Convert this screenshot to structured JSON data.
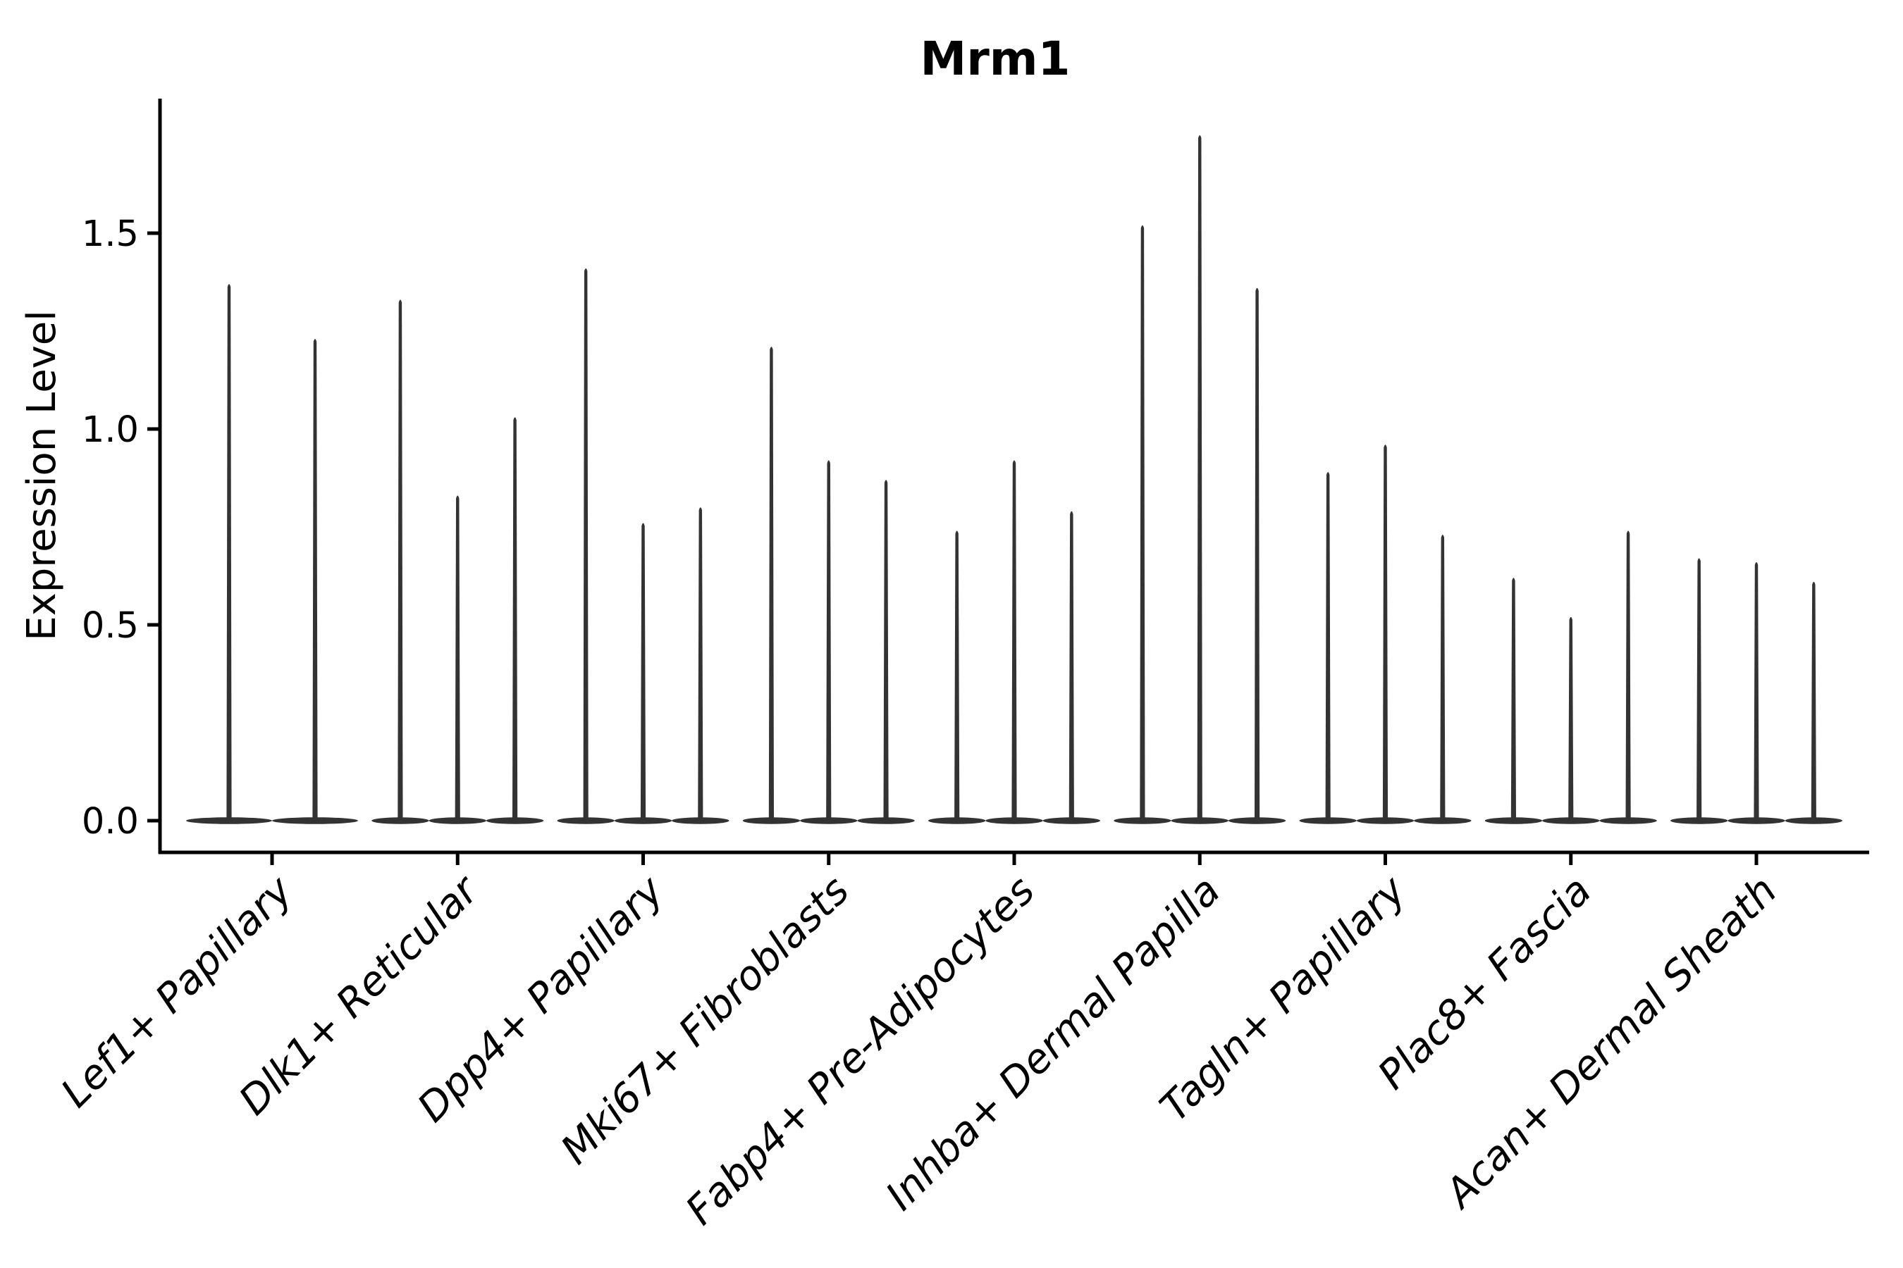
{
  "chart_data": {
    "type": "violin",
    "title": "Mrm1",
    "ylabel": "Expression Level",
    "xlabel": "",
    "ylim": [
      -0.08,
      1.84
    ],
    "y_ticks": [
      0.0,
      0.5,
      1.0,
      1.5
    ],
    "y_tick_labels": [
      "0.0",
      "0.5",
      "1.0",
      "1.5"
    ],
    "grid": false,
    "legend": "none",
    "violin_color": "#333333",
    "axis_color": "#000000",
    "categories": [
      "Lef1+ Papillary",
      "Dlk1+ Reticular",
      "Dpp4+ Papillary",
      "Mki67+ Fibroblasts",
      "Fabp4+ Pre-Adipocytes",
      "Inhba+ Dermal Papilla",
      "Tagln+ Papillary",
      "Plac8+ Fascia",
      "Acan+ Dermal Sheath"
    ],
    "groups": [
      {
        "label": "Lef1+ Papillary",
        "spike_maxima": [
          1.37,
          1.23
        ]
      },
      {
        "label": "Dlk1+ Reticular",
        "spike_maxima": [
          1.33,
          0.83,
          1.03
        ]
      },
      {
        "label": "Dpp4+ Papillary",
        "spike_maxima": [
          1.41,
          0.76,
          0.8
        ]
      },
      {
        "label": "Mki67+ Fibroblasts",
        "spike_maxima": [
          1.21,
          0.92,
          0.87
        ]
      },
      {
        "label": "Fabp4+ Pre-Adipocytes",
        "spike_maxima": [
          0.74,
          0.92,
          0.79
        ]
      },
      {
        "label": "Inhba+ Dermal Papilla",
        "spike_maxima": [
          1.52,
          1.75,
          1.36
        ]
      },
      {
        "label": "Tagln+ Papillary",
        "spike_maxima": [
          0.89,
          0.96,
          0.73
        ]
      },
      {
        "label": "Plac8+ Fascia",
        "spike_maxima": [
          0.62,
          0.52,
          0.74
        ]
      },
      {
        "label": "Acan+ Dermal Sheath",
        "spike_maxima": [
          0.67,
          0.66,
          0.61
        ]
      }
    ]
  }
}
